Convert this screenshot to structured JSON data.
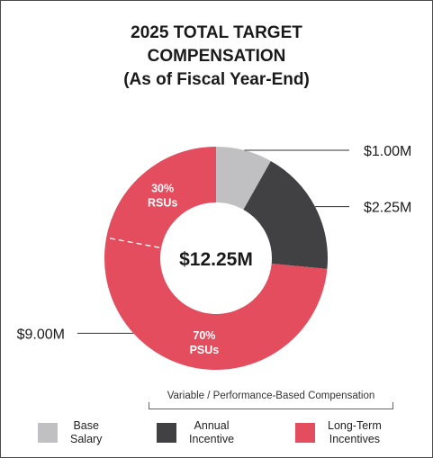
{
  "title": {
    "line1": "2025 TOTAL TARGET",
    "line2": "COMPENSATION",
    "line3": "(As of Fiscal Year-End)"
  },
  "chart_data": {
    "type": "pie",
    "title": "2025 TOTAL TARGET COMPENSATION (As of Fiscal Year-End)",
    "center_label": "$12.25M",
    "slices": [
      {
        "name": "Base Salary",
        "value": 1.0,
        "label": "$1.00M",
        "color": "#c0c0c2"
      },
      {
        "name": "Annual Incentive",
        "value": 2.25,
        "label": "$2.25M",
        "color": "#414042"
      },
      {
        "name": "Long-Term Incentives",
        "value": 9.0,
        "label": "$9.00M",
        "color": "#e34d5e"
      }
    ],
    "sub_slices": [
      {
        "parent": "Long-Term Incentives",
        "percent": "70%",
        "name": "PSUs"
      },
      {
        "parent": "Long-Term Incentives",
        "percent": "30%",
        "name": "RSUs"
      }
    ],
    "bracket_label": "Variable / Performance-Based Compensation",
    "legend_position": "bottom"
  },
  "legend": {
    "items": [
      {
        "line1": "Base",
        "line2": "Salary",
        "color": "#c0c0c2"
      },
      {
        "line1": "Annual",
        "line2": "Incentive",
        "color": "#414042"
      },
      {
        "line1": "Long-Term",
        "line2": "Incentives",
        "color": "#e34d5e"
      }
    ]
  }
}
